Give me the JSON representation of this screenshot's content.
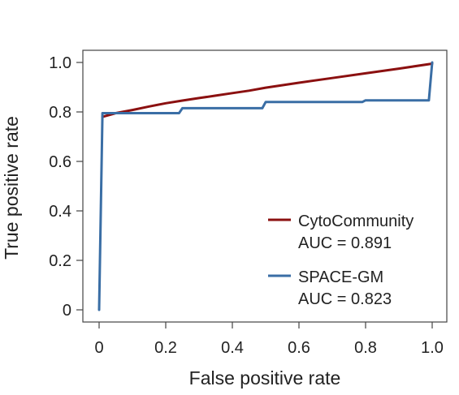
{
  "chart_data": {
    "type": "line",
    "title": "",
    "xlabel": "False positive rate",
    "ylabel": "True positive rate",
    "xlim": [
      0,
      1
    ],
    "ylim": [
      0,
      1
    ],
    "grid": false,
    "legend_position": "bottom-right",
    "xticks": [
      {
        "value": 0,
        "label": "0"
      },
      {
        "value": 0.2,
        "label": "0.2"
      },
      {
        "value": 0.4,
        "label": "0.4"
      },
      {
        "value": 0.6,
        "label": "0.6"
      },
      {
        "value": 0.8,
        "label": "0.8"
      },
      {
        "value": 1.0,
        "label": "1.0"
      }
    ],
    "yticks": [
      {
        "value": 0,
        "label": "0"
      },
      {
        "value": 0.2,
        "label": "0.2"
      },
      {
        "value": 0.4,
        "label": "0.4"
      },
      {
        "value": 0.6,
        "label": "0.6"
      },
      {
        "value": 0.8,
        "label": "0.8"
      },
      {
        "value": 1.0,
        "label": "1.0"
      }
    ],
    "series": [
      {
        "name": "CytoCommunity",
        "auc_label": "AUC = 0.891",
        "color": "#8b1010",
        "x": [
          0.01,
          0.05,
          0.1,
          0.15,
          0.2,
          0.25,
          0.3,
          0.35,
          0.4,
          0.45,
          0.5,
          0.6,
          0.7,
          0.8,
          0.9,
          1.0
        ],
        "y": [
          0.78,
          0.795,
          0.808,
          0.822,
          0.835,
          0.846,
          0.856,
          0.866,
          0.876,
          0.886,
          0.898,
          0.918,
          0.937,
          0.956,
          0.975,
          0.995
        ]
      },
      {
        "name": "SPACE-GM",
        "auc_label": "AUC = 0.823",
        "color": "#3a6ea5",
        "x": [
          0.0,
          0.01,
          0.01,
          0.24,
          0.25,
          0.49,
          0.5,
          0.79,
          0.8,
          0.99,
          1.0
        ],
        "y": [
          0.0,
          0.79,
          0.795,
          0.795,
          0.815,
          0.815,
          0.84,
          0.84,
          0.847,
          0.847,
          1.0
        ]
      }
    ]
  }
}
